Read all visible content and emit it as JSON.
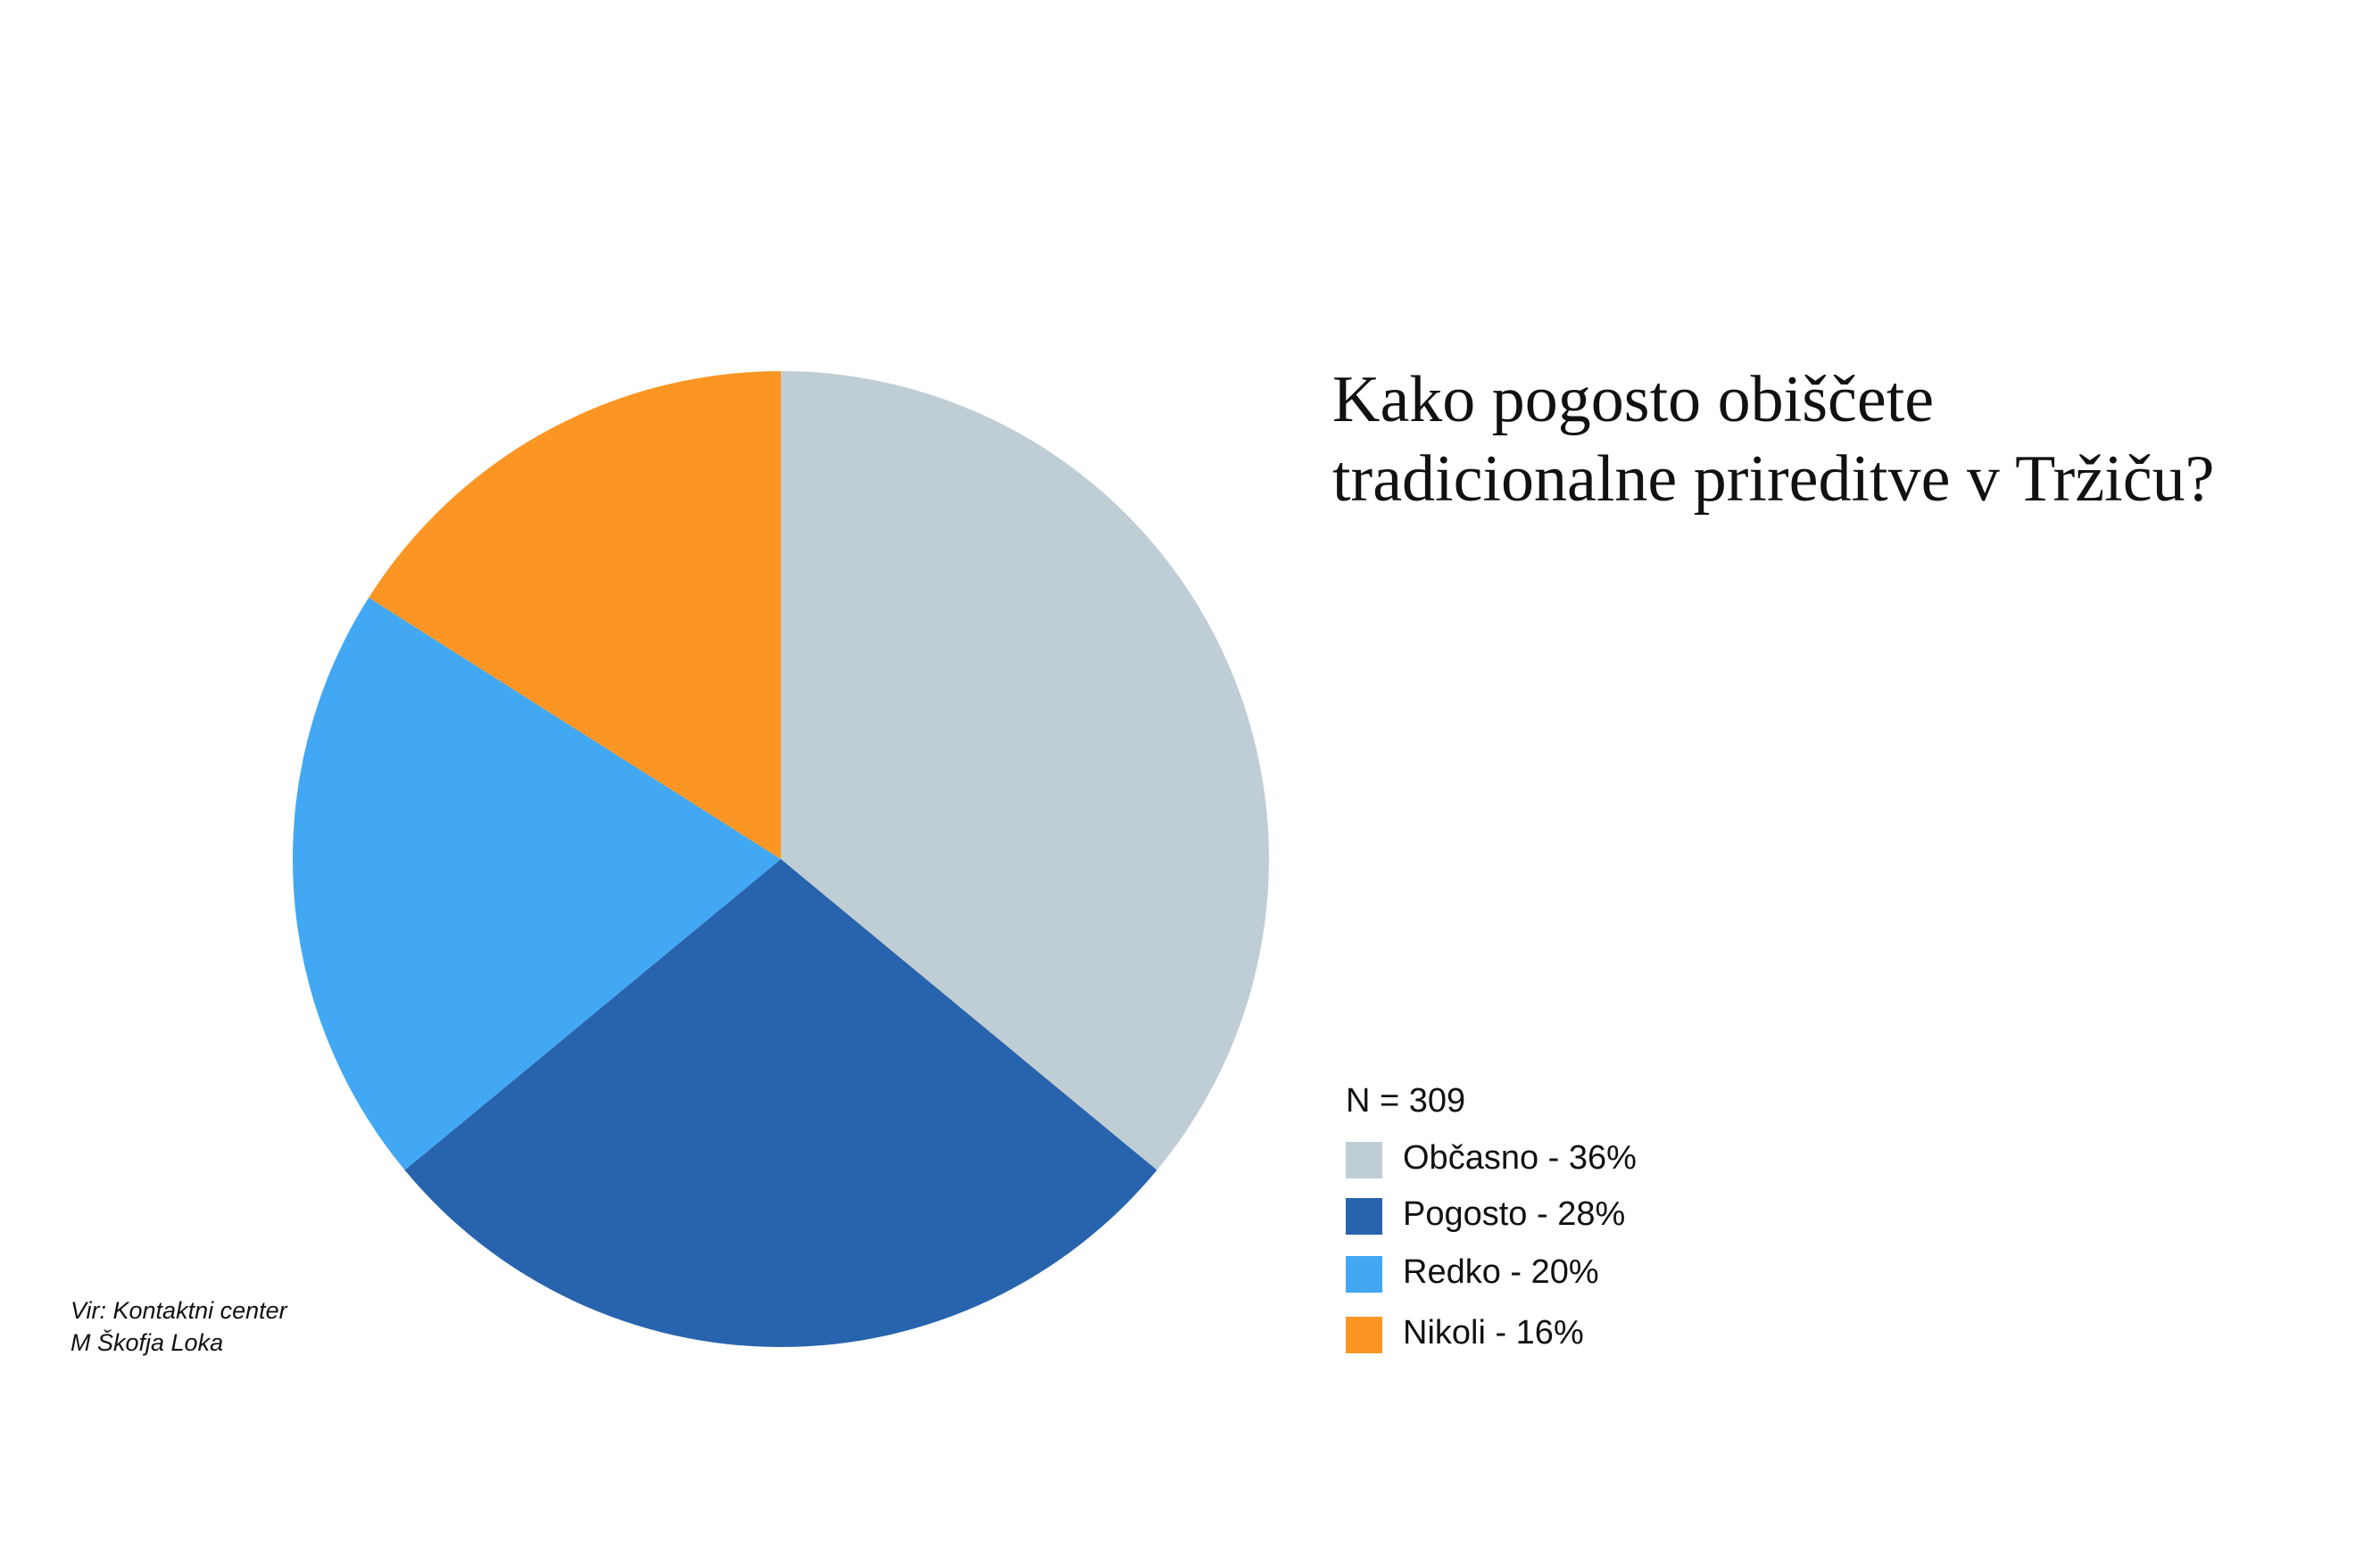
{
  "chart_data": {
    "type": "pie",
    "title": [
      "Kako pogosto obiščete",
      "tradicionalne prireditve v Tržiču?"
    ],
    "categories": [
      "Občasno - 36%",
      "Pogosto - 28%",
      "Redko - 20%",
      "Nikoli - 16%"
    ],
    "values": [
      36,
      28,
      20,
      16
    ],
    "colors": [
      "#bfcdd4",
      "#2864ad",
      "#42a8f3",
      "#fb9624"
    ],
    "sample_label": "N = 309",
    "source": [
      "Vir: Kontaktni center",
      "M Škofja Loka"
    ]
  }
}
